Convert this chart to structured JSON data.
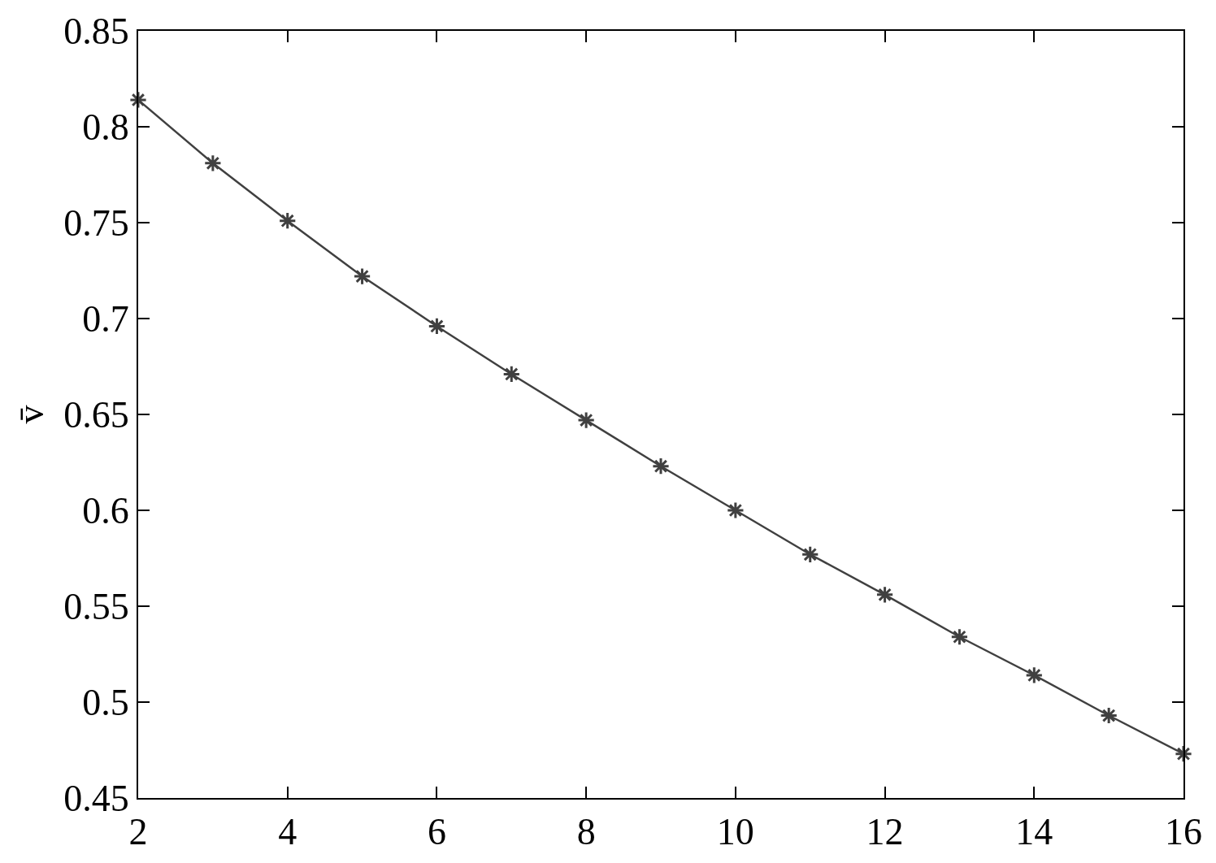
{
  "chart_data": {
    "type": "line",
    "ylabel": "v̄",
    "x": [
      2,
      3,
      4,
      5,
      6,
      7,
      8,
      9,
      10,
      11,
      12,
      13,
      14,
      15,
      16
    ],
    "series": [
      {
        "color": "#404040",
        "values": [
          0.814,
          0.781,
          0.751,
          0.722,
          0.696,
          0.671,
          0.647,
          0.623,
          0.6,
          0.577,
          0.556,
          0.534,
          0.514,
          0.493,
          0.473
        ]
      }
    ],
    "xlim": [
      2,
      16
    ],
    "xticks": [
      2,
      4,
      6,
      8,
      10,
      12,
      14,
      16
    ],
    "ylim": [
      0.45,
      0.85
    ],
    "yticks": [
      0.45,
      0.5,
      0.55,
      0.6,
      0.65,
      0.7,
      0.75,
      0.8,
      0.85
    ],
    "marker": "cross",
    "line_style": "solid"
  }
}
